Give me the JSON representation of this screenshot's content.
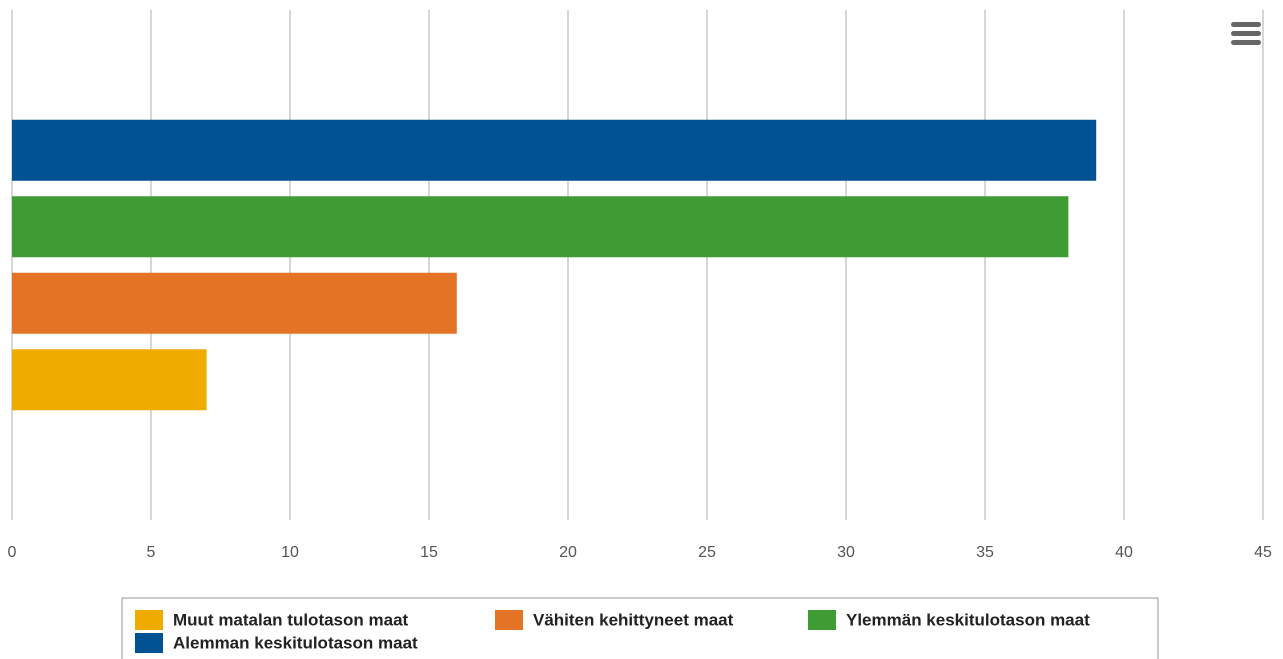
{
  "chart_data": {
    "type": "hbar",
    "categories": [
      null
    ],
    "series": [
      {
        "name": "Muut matalan tulotason maat",
        "color": "#f0ab00",
        "values": [
          7
        ]
      },
      {
        "name": "Vähiten kehittyneet maat",
        "color": "#e57325",
        "values": [
          16
        ]
      },
      {
        "name": "Ylemmän keskitulotason maat",
        "color": "#3f9c35",
        "values": [
          38
        ]
      },
      {
        "name": "Alemman keskitulotason maat",
        "color": "#005293",
        "values": [
          39
        ]
      }
    ],
    "xlim": [
      0,
      45
    ],
    "xticks": [
      0,
      5,
      10,
      15,
      20,
      25,
      30,
      35,
      40,
      45
    ],
    "grid": true,
    "legend": "bottom"
  }
}
